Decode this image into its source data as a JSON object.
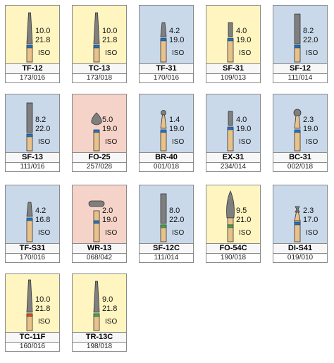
{
  "colors": {
    "yellow": "#fff5c0",
    "blue": "#c9d9ea",
    "pink": "#f6d3c8",
    "shank": "#e8c28a",
    "head": "#7f7f7f",
    "band_blue": "#1c73c9",
    "band_green": "#3ea94a",
    "band_red": "#d84a22"
  },
  "burs": [
    {
      "name": "TF-12",
      "code": "173/016",
      "l1": "10.0",
      "l2": "21.8",
      "iso": "ISO",
      "bg": "yellow",
      "shape": "taper",
      "band": "band_blue"
    },
    {
      "name": "TC-13",
      "code": "173/018",
      "l1": "10.0",
      "l2": "21.8",
      "iso": "ISO",
      "bg": "yellow",
      "shape": "taper",
      "band": "band_blue"
    },
    {
      "name": "TF-31",
      "code": "170/016",
      "l1": "4.2",
      "l2": "19.0",
      "iso": "ISO",
      "bg": "blue",
      "shape": "short-taper",
      "band": "band_blue"
    },
    {
      "name": "SF-31",
      "code": "109/013",
      "l1": "4.0",
      "l2": "19.0",
      "iso": "ISO",
      "bg": "yellow",
      "shape": "short-cyl",
      "band": "band_blue"
    },
    {
      "name": "SF-12",
      "code": "111/014",
      "l1": "8.2",
      "l2": "22.0",
      "iso": "ISO",
      "bg": "blue",
      "shape": "cyl",
      "band": "band_blue"
    },
    {
      "name": "SF-13",
      "code": "111/016",
      "l1": "8.2",
      "l2": "22.0",
      "iso": "ISO",
      "bg": "blue",
      "shape": "cyl",
      "band": "band_blue"
    },
    {
      "name": "FO-25",
      "code": "257/028",
      "l1": "5.0",
      "l2": "19.0",
      "iso": "ISO",
      "bg": "pink",
      "shape": "flame-ball",
      "band": "band_blue"
    },
    {
      "name": "BR-40",
      "code": "001/018",
      "l1": "1.4",
      "l2": "19.0",
      "iso": "ISO",
      "bg": "blue",
      "shape": "ball-small",
      "band": "band_blue"
    },
    {
      "name": "EX-31",
      "code": "234/014",
      "l1": "4.0",
      "l2": "19.0",
      "iso": "ISO",
      "bg": "blue",
      "shape": "short-cyl",
      "band": "band_blue"
    },
    {
      "name": "BC-31",
      "code": "002/018",
      "l1": "2.3",
      "l2": "19.0",
      "iso": "ISO",
      "bg": "blue",
      "shape": "ball-med",
      "band": "band_blue"
    },
    {
      "name": "TF-S31",
      "code": "170/016",
      "l1": "4.2",
      "l2": "16.8",
      "iso": "ISO",
      "bg": "blue",
      "shape": "short-taper",
      "band": "band_blue"
    },
    {
      "name": "WR-13",
      "code": "068/042",
      "l1": "2.0",
      "l2": "19.0",
      "iso": "ISO",
      "bg": "pink",
      "shape": "wheel",
      "band": "band_blue"
    },
    {
      "name": "SF-12C",
      "code": "111/014",
      "l1": "8.0",
      "l2": "22.0",
      "iso": "ISO",
      "bg": "blue",
      "shape": "cyl",
      "band": "band_green"
    },
    {
      "name": "FO-54C",
      "code": "190/018",
      "l1": "9.5",
      "l2": "21.0",
      "iso": "ISO",
      "bg": "yellow",
      "shape": "flame",
      "band": "band_green"
    },
    {
      "name": "DI-S41",
      "code": "019/010",
      "l1": "2.3",
      "l2": "17.0",
      "iso": "ISO",
      "bg": "blue",
      "shape": "diabolo",
      "band": "band_blue"
    },
    {
      "name": "TC-11F",
      "code": "160/016",
      "l1": "10.0",
      "l2": "21.8",
      "iso": "ISO",
      "bg": "yellow",
      "shape": "taper-long",
      "band": "band_red"
    },
    {
      "name": "TR-13C",
      "code": "198/018",
      "l1": "9.0",
      "l2": "21.8",
      "iso": "ISO",
      "bg": "yellow",
      "shape": "taper",
      "band": "band_green"
    }
  ]
}
